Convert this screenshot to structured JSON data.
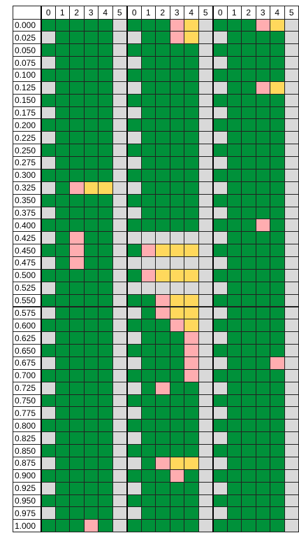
{
  "columns": [
    "0",
    "1",
    "2",
    "3",
    "4",
    "5",
    "0",
    "1",
    "2",
    "3",
    "4",
    "5",
    "0",
    "1",
    "2",
    "3",
    "4",
    "5"
  ],
  "colors": {
    "g": "#00913a",
    "x": "#d9d9d9",
    "p": "#ffadb0",
    "y": "#ffd85c"
  },
  "rows": [
    {
      "label": "0.000",
      "cells": "gggggxgggpyxgggpyx"
    },
    {
      "label": "0.025",
      "cells": "xggggxxggpyxxggggx"
    },
    {
      "label": "0.050",
      "cells": "gggggxgggggxgggggx"
    },
    {
      "label": "0.075",
      "cells": "xggggxxggggxxggggx"
    },
    {
      "label": "0.100",
      "cells": "gggggxgggggxgggggx"
    },
    {
      "label": "0.125",
      "cells": "xggggxxggggxxggpyx"
    },
    {
      "label": "0.150",
      "cells": "gggggxgggggxgggggx"
    },
    {
      "label": "0.175",
      "cells": "xggggxxggggxxggggx"
    },
    {
      "label": "0.200",
      "cells": "gggggxgggggxgggggx"
    },
    {
      "label": "0.225",
      "cells": "xggggxxggggxxggggx"
    },
    {
      "label": "0.250",
      "cells": "gggggxgggggxgggggx"
    },
    {
      "label": "0.275",
      "cells": "xggggxxggggxxggggx"
    },
    {
      "label": "0.300",
      "cells": "gggggxgggggxgggggx"
    },
    {
      "label": "0.325",
      "cells": "xgpyyxxggggxxggggx"
    },
    {
      "label": "0.350",
      "cells": "gggggxgggggxgggggx"
    },
    {
      "label": "0.375",
      "cells": "xggggxxggggxxggggx"
    },
    {
      "label": "0.400",
      "cells": "gggggxgggggxgggpgx"
    },
    {
      "label": "0.425",
      "cells": "xgpggxxxxxxxxggggx"
    },
    {
      "label": "0.450",
      "cells": "ggpggxgpyyyxgggggx"
    },
    {
      "label": "0.475",
      "cells": "xgpggxxxxxxxxggggx"
    },
    {
      "label": "0.500",
      "cells": "gggggxgpyyyxgggggx"
    },
    {
      "label": "0.525",
      "cells": "xggggxxxxxxxxggggx"
    },
    {
      "label": "0.550",
      "cells": "gggggxggpyyxgggggx"
    },
    {
      "label": "0.575",
      "cells": "xggggxxgpyyxxggggx"
    },
    {
      "label": "0.600",
      "cells": "gggggxgggpyxgggggx"
    },
    {
      "label": "0.625",
      "cells": "xggggxxgggpxxggggx"
    },
    {
      "label": "0.650",
      "cells": "gggggxggggpxgggggx"
    },
    {
      "label": "0.675",
      "cells": "xggggxxgggpxxgggpx"
    },
    {
      "label": "0.700",
      "cells": "gggggxggggpxgggggx"
    },
    {
      "label": "0.725",
      "cells": "xggggxxgpggxxggggx"
    },
    {
      "label": "0.750",
      "cells": "gggggxgggggxgggggx"
    },
    {
      "label": "0.775",
      "cells": "xggggxxggggxxggggx"
    },
    {
      "label": "0.800",
      "cells": "gggggxgggggxgggggx"
    },
    {
      "label": "0.825",
      "cells": "xggggxxggggxxggggx"
    },
    {
      "label": "0.850",
      "cells": "gggggxgggggxgggggx"
    },
    {
      "label": "0.875",
      "cells": "xggggxxgpyyxxggggx"
    },
    {
      "label": "0.900",
      "cells": "gggggxgggpgxgggggx"
    },
    {
      "label": "0.925",
      "cells": "xggggxxggggxxggggx"
    },
    {
      "label": "0.950",
      "cells": "gggggxgggggxgggggx"
    },
    {
      "label": "0.975",
      "cells": "xggggxxggggxxggggx"
    },
    {
      "label": "1.000",
      "cells": "gggpgxgggggxgggggx"
    }
  ]
}
